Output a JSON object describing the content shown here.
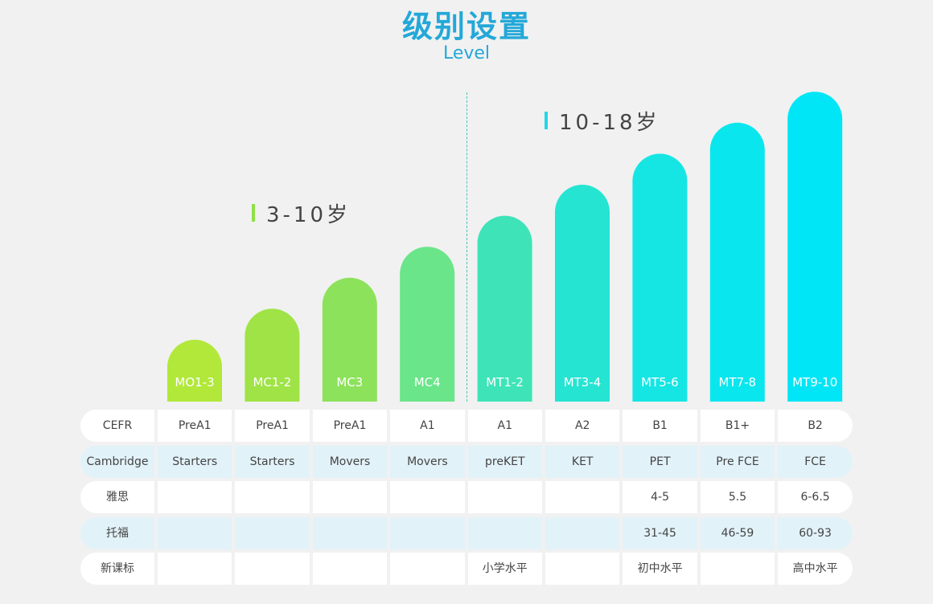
{
  "header": {
    "title": "级别设置",
    "subtitle": "Level"
  },
  "groups": [
    {
      "label": "3-10岁",
      "color": "#8fe046"
    },
    {
      "label": "10-18岁",
      "color": "#22d7e8"
    }
  ],
  "chart_data": {
    "type": "bar",
    "categories": [
      "MO1-3",
      "MC1-2",
      "MC3",
      "MC4",
      "MT1-2",
      "MT3-4",
      "MT5-6",
      "MT7-8",
      "MT9-10"
    ],
    "values": [
      1,
      2,
      3,
      4,
      5,
      6,
      7,
      8,
      9
    ],
    "colors": [
      "#b1e83a",
      "#9fe346",
      "#8ce25a",
      "#6ae58a",
      "#3ee4b8",
      "#25e4d2",
      "#15e6e4",
      "#0ae6ee",
      "#00e6f6"
    ],
    "title": "级别设置",
    "subtitle": "Level",
    "ylim": [
      0,
      9
    ],
    "grid": false,
    "bar_shape": "rounded-top",
    "divider_after_category": "MC4"
  },
  "table": {
    "rows": [
      {
        "name": "CEFR",
        "cells": [
          "PreA1",
          "PreA1",
          "PreA1",
          "A1",
          "A1",
          "A2",
          "B1",
          "B1+",
          "B2"
        ]
      },
      {
        "name": "Cambridge",
        "cells": [
          "Starters",
          "Starters",
          "Movers",
          "Movers",
          "preKET",
          "KET",
          "PET",
          "Pre FCE",
          "FCE"
        ]
      },
      {
        "name": "雅思",
        "cells": [
          "",
          "",
          "",
          "",
          "",
          "",
          "4-5",
          "5.5",
          "6-6.5"
        ]
      },
      {
        "name": "托福",
        "cells": [
          "",
          "",
          "",
          "",
          "",
          "",
          "31-45",
          "46-59",
          "60-93"
        ]
      },
      {
        "name": "新课标",
        "cells": [
          "",
          "",
          "",
          "",
          "小学水平",
          "",
          "初中水平",
          "",
          "高中水平"
        ]
      }
    ]
  }
}
